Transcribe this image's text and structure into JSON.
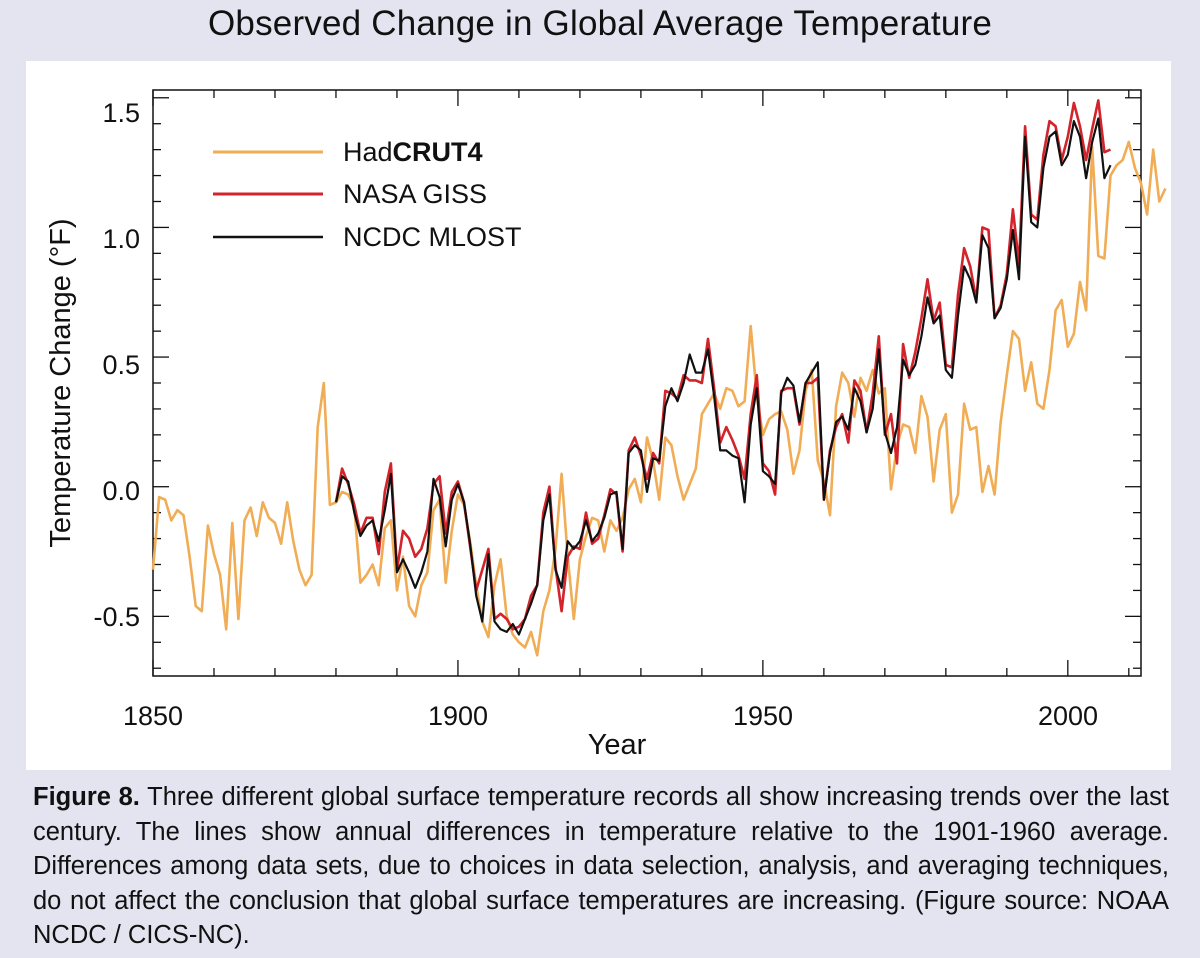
{
  "title": "Observed Change in Global Average Temperature",
  "caption": {
    "label": "Figure 8.",
    "text": " Three different global surface temperature records all show increasing trends over the last century. The lines show annual differences in temperature relative to the 1901-1960 average. Differences among data sets, due to choices in data selection, analysis, and averaging techniques, do not affect the conclusion that global surface temperatures are increasing. (Figure source: NOAA NCDC / CICS-NC)."
  },
  "colors": {
    "background": "#e4e3f0",
    "plot_background": "#ffffff",
    "hadcrut4": "#f0ad55",
    "nasa_giss": "#d3232b",
    "ncdc_mlost": "#111111"
  },
  "chart_data": {
    "type": "line",
    "title": "Observed Change in Global Average Temperature",
    "xlabel": "Year",
    "ylabel": "Temperature Change (°F)",
    "xlim": [
      1850,
      2012
    ],
    "ylim": [
      -0.73,
      1.53
    ],
    "x_ticks": [
      1850,
      1900,
      1950,
      2000
    ],
    "x_tick_labels": [
      "1850",
      "1900",
      "1950",
      "2000"
    ],
    "y_ticks": [
      -0.5,
      0.0,
      0.5,
      1.0,
      1.5
    ],
    "y_tick_labels": [
      "-0.5",
      "0.0",
      "0.5",
      "1.0",
      "1.5"
    ],
    "grid": false,
    "legend_position": "top-left",
    "series": [
      {
        "name": "HadCRUT4",
        "legend_parts": [
          "Had",
          "CRUT4"
        ],
        "color": "#f0ad55",
        "start_year": 1850,
        "values": [
          -0.32,
          -0.04,
          -0.05,
          -0.13,
          -0.09,
          -0.11,
          -0.27,
          -0.46,
          -0.48,
          -0.15,
          -0.26,
          -0.34,
          -0.55,
          -0.14,
          -0.51,
          -0.13,
          -0.08,
          -0.19,
          -0.06,
          -0.12,
          -0.14,
          -0.22,
          -0.06,
          -0.21,
          -0.32,
          -0.38,
          -0.34,
          0.23,
          0.4,
          -0.07,
          -0.06,
          -0.02,
          -0.03,
          -0.08,
          -0.37,
          -0.34,
          -0.3,
          -0.38,
          -0.16,
          -0.13,
          -0.4,
          -0.27,
          -0.46,
          -0.5,
          -0.38,
          -0.33,
          -0.09,
          -0.05,
          -0.37,
          -0.17,
          -0.03,
          -0.07,
          -0.21,
          -0.38,
          -0.52,
          -0.58,
          -0.38,
          -0.28,
          -0.5,
          -0.57,
          -0.6,
          -0.62,
          -0.56,
          -0.65,
          -0.48,
          -0.4,
          -0.24,
          0.05,
          -0.27,
          -0.51,
          -0.28,
          -0.19,
          -0.12,
          -0.13,
          -0.25,
          -0.13,
          -0.17,
          -0.12,
          -0.01,
          0.03,
          -0.06,
          0.19,
          0.1,
          -0.05,
          0.19,
          0.16,
          0.04,
          -0.05,
          0.01,
          0.07,
          0.28,
          0.32,
          0.36,
          0.3,
          0.38,
          0.37,
          0.31,
          0.33,
          0.62,
          0.35,
          0.2,
          0.26,
          0.28,
          0.29,
          0.22,
          0.05,
          0.14,
          0.37,
          0.45,
          0.1,
          0.02,
          -0.11,
          0.31,
          0.44,
          0.4,
          0.27,
          0.42,
          0.37,
          0.45,
          0.36,
          0.38,
          -0.01,
          0.16,
          0.24,
          0.23,
          0.13,
          0.35,
          0.27,
          0.02,
          0.22,
          0.28,
          -0.1,
          -0.03,
          0.32,
          0.22,
          0.23,
          -0.02,
          0.08,
          -0.03,
          0.25,
          0.43,
          0.6,
          0.57,
          0.37,
          0.48,
          0.32,
          0.3,
          0.45,
          0.68,
          0.72,
          0.54,
          0.59,
          0.79,
          0.68,
          1.31,
          0.89,
          0.88,
          1.2,
          1.24,
          1.26,
          1.33,
          1.23,
          1.17,
          1.05,
          1.3,
          1.1,
          1.15
        ]
      },
      {
        "name": "NASA GISS",
        "color": "#d3232b",
        "start_year": 1880,
        "values": [
          -0.06,
          0.07,
          0.01,
          -0.07,
          -0.18,
          -0.12,
          -0.12,
          -0.26,
          -0.02,
          0.09,
          -0.32,
          -0.17,
          -0.2,
          -0.27,
          -0.24,
          -0.16,
          0.01,
          0.04,
          -0.18,
          -0.02,
          0.02,
          -0.06,
          -0.23,
          -0.4,
          -0.32,
          -0.24,
          -0.51,
          -0.49,
          -0.51,
          -0.55,
          -0.54,
          -0.51,
          -0.42,
          -0.38,
          -0.1,
          0.0,
          -0.31,
          -0.48,
          -0.27,
          -0.23,
          -0.24,
          -0.1,
          -0.22,
          -0.2,
          -0.11,
          -0.01,
          -0.03,
          -0.25,
          0.14,
          0.19,
          0.12,
          0.03,
          0.13,
          0.09,
          0.37,
          0.36,
          0.34,
          0.43,
          0.41,
          0.41,
          0.4,
          0.57,
          0.38,
          0.17,
          0.23,
          0.18,
          0.12,
          0.03,
          0.28,
          0.43,
          0.09,
          0.06,
          -0.03,
          0.37,
          0.38,
          0.38,
          0.24,
          0.4,
          0.4,
          0.42,
          -0.05,
          0.14,
          0.23,
          0.28,
          0.17,
          0.41,
          0.37,
          0.21,
          0.36,
          0.58,
          0.2,
          0.28,
          0.09,
          0.55,
          0.42,
          0.52,
          0.65,
          0.8,
          0.64,
          0.71,
          0.47,
          0.46,
          0.74,
          0.92,
          0.85,
          0.72,
          1.0,
          0.99,
          0.65,
          0.7,
          0.82,
          1.07,
          0.86,
          1.39,
          1.05,
          1.03,
          1.28,
          1.41,
          1.39,
          1.26,
          1.35,
          1.48,
          1.39,
          1.26,
          1.38,
          1.49,
          1.29,
          1.3
        ]
      },
      {
        "name": "NCDC MLOST",
        "color": "#111111",
        "start_year": 1880,
        "values": [
          -0.06,
          0.04,
          0.02,
          -0.1,
          -0.19,
          -0.15,
          -0.13,
          -0.21,
          -0.09,
          0.05,
          -0.33,
          -0.28,
          -0.33,
          -0.39,
          -0.33,
          -0.25,
          0.03,
          -0.04,
          -0.23,
          -0.05,
          0.01,
          -0.06,
          -0.22,
          -0.42,
          -0.52,
          -0.26,
          -0.52,
          -0.55,
          -0.56,
          -0.53,
          -0.57,
          -0.51,
          -0.45,
          -0.38,
          -0.13,
          -0.03,
          -0.32,
          -0.39,
          -0.21,
          -0.24,
          -0.21,
          -0.13,
          -0.21,
          -0.18,
          -0.12,
          -0.03,
          -0.02,
          -0.24,
          0.13,
          0.16,
          0.14,
          -0.02,
          0.11,
          0.1,
          0.31,
          0.38,
          0.33,
          0.4,
          0.51,
          0.44,
          0.44,
          0.53,
          0.35,
          0.14,
          0.14,
          0.12,
          0.11,
          -0.06,
          0.24,
          0.38,
          0.06,
          0.04,
          0.01,
          0.36,
          0.42,
          0.39,
          0.25,
          0.4,
          0.44,
          0.48,
          -0.05,
          0.13,
          0.25,
          0.27,
          0.22,
          0.38,
          0.33,
          0.21,
          0.3,
          0.53,
          0.21,
          0.13,
          0.23,
          0.49,
          0.43,
          0.47,
          0.58,
          0.73,
          0.63,
          0.66,
          0.45,
          0.42,
          0.66,
          0.85,
          0.8,
          0.71,
          0.97,
          0.92,
          0.65,
          0.69,
          0.8,
          0.99,
          0.8,
          1.35,
          1.02,
          1.0,
          1.23,
          1.35,
          1.37,
          1.24,
          1.28,
          1.41,
          1.35,
          1.19,
          1.33,
          1.42,
          1.19,
          1.24
        ]
      }
    ]
  }
}
